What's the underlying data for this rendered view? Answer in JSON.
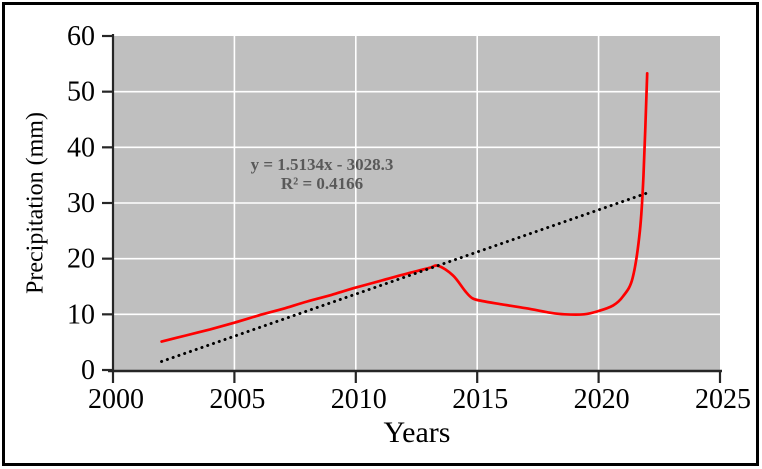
{
  "figure": {
    "background": "#ffffff",
    "border_color": "#000000"
  },
  "chart_data": {
    "type": "line",
    "title": "",
    "xlabel": "Years",
    "ylabel": "Precipitation (mm)",
    "xlim": [
      2000,
      2025
    ],
    "ylim": [
      0,
      60
    ],
    "x_ticks": [
      2000,
      2005,
      2010,
      2015,
      2020,
      2025
    ],
    "y_ticks": [
      0,
      10,
      20,
      30,
      40,
      50,
      60
    ],
    "grid": true,
    "legend": "none",
    "plot_bg": "#bfbfbf",
    "grid_color": "#ffffff",
    "axis_color": "#262626",
    "tick_label_color": "#000000",
    "series": [
      {
        "name": "precipitation",
        "type": "smooth-line",
        "color": "#fe0000",
        "points": [
          [
            2002,
            5.1
          ],
          [
            2003,
            6.2
          ],
          [
            2004,
            7.3
          ],
          [
            2005,
            8.5
          ],
          [
            2006,
            9.8
          ],
          [
            2007,
            11.0
          ],
          [
            2008,
            12.3
          ],
          [
            2009,
            13.5
          ],
          [
            2010,
            14.8
          ],
          [
            2011,
            16.0
          ],
          [
            2012,
            17.2
          ],
          [
            2013,
            18.3
          ],
          [
            2013.4,
            18.7
          ],
          [
            2014,
            17.0
          ],
          [
            2014.5,
            14.2
          ],
          [
            2014.8,
            12.9
          ],
          [
            2015.2,
            12.4
          ],
          [
            2016,
            11.8
          ],
          [
            2017,
            11.1
          ],
          [
            2018,
            10.3
          ],
          [
            2018.6,
            10.0
          ],
          [
            2019.4,
            10.0
          ],
          [
            2020,
            10.6
          ],
          [
            2020.6,
            11.6
          ],
          [
            2021,
            13.2
          ],
          [
            2021.4,
            16.5
          ],
          [
            2021.7,
            25.0
          ],
          [
            2021.85,
            35.0
          ],
          [
            2022,
            53.3
          ]
        ]
      },
      {
        "name": "linear-trendline",
        "type": "dotted-line",
        "color": "#000000",
        "slope": 1.5134,
        "intercept": -3028.3,
        "x_start": 2002,
        "x_end": 2022
      }
    ],
    "annotation": {
      "equation": "y = 1.5134x - 3028.3",
      "r_squared": "R² = 0.4166",
      "color": "#595959"
    }
  }
}
